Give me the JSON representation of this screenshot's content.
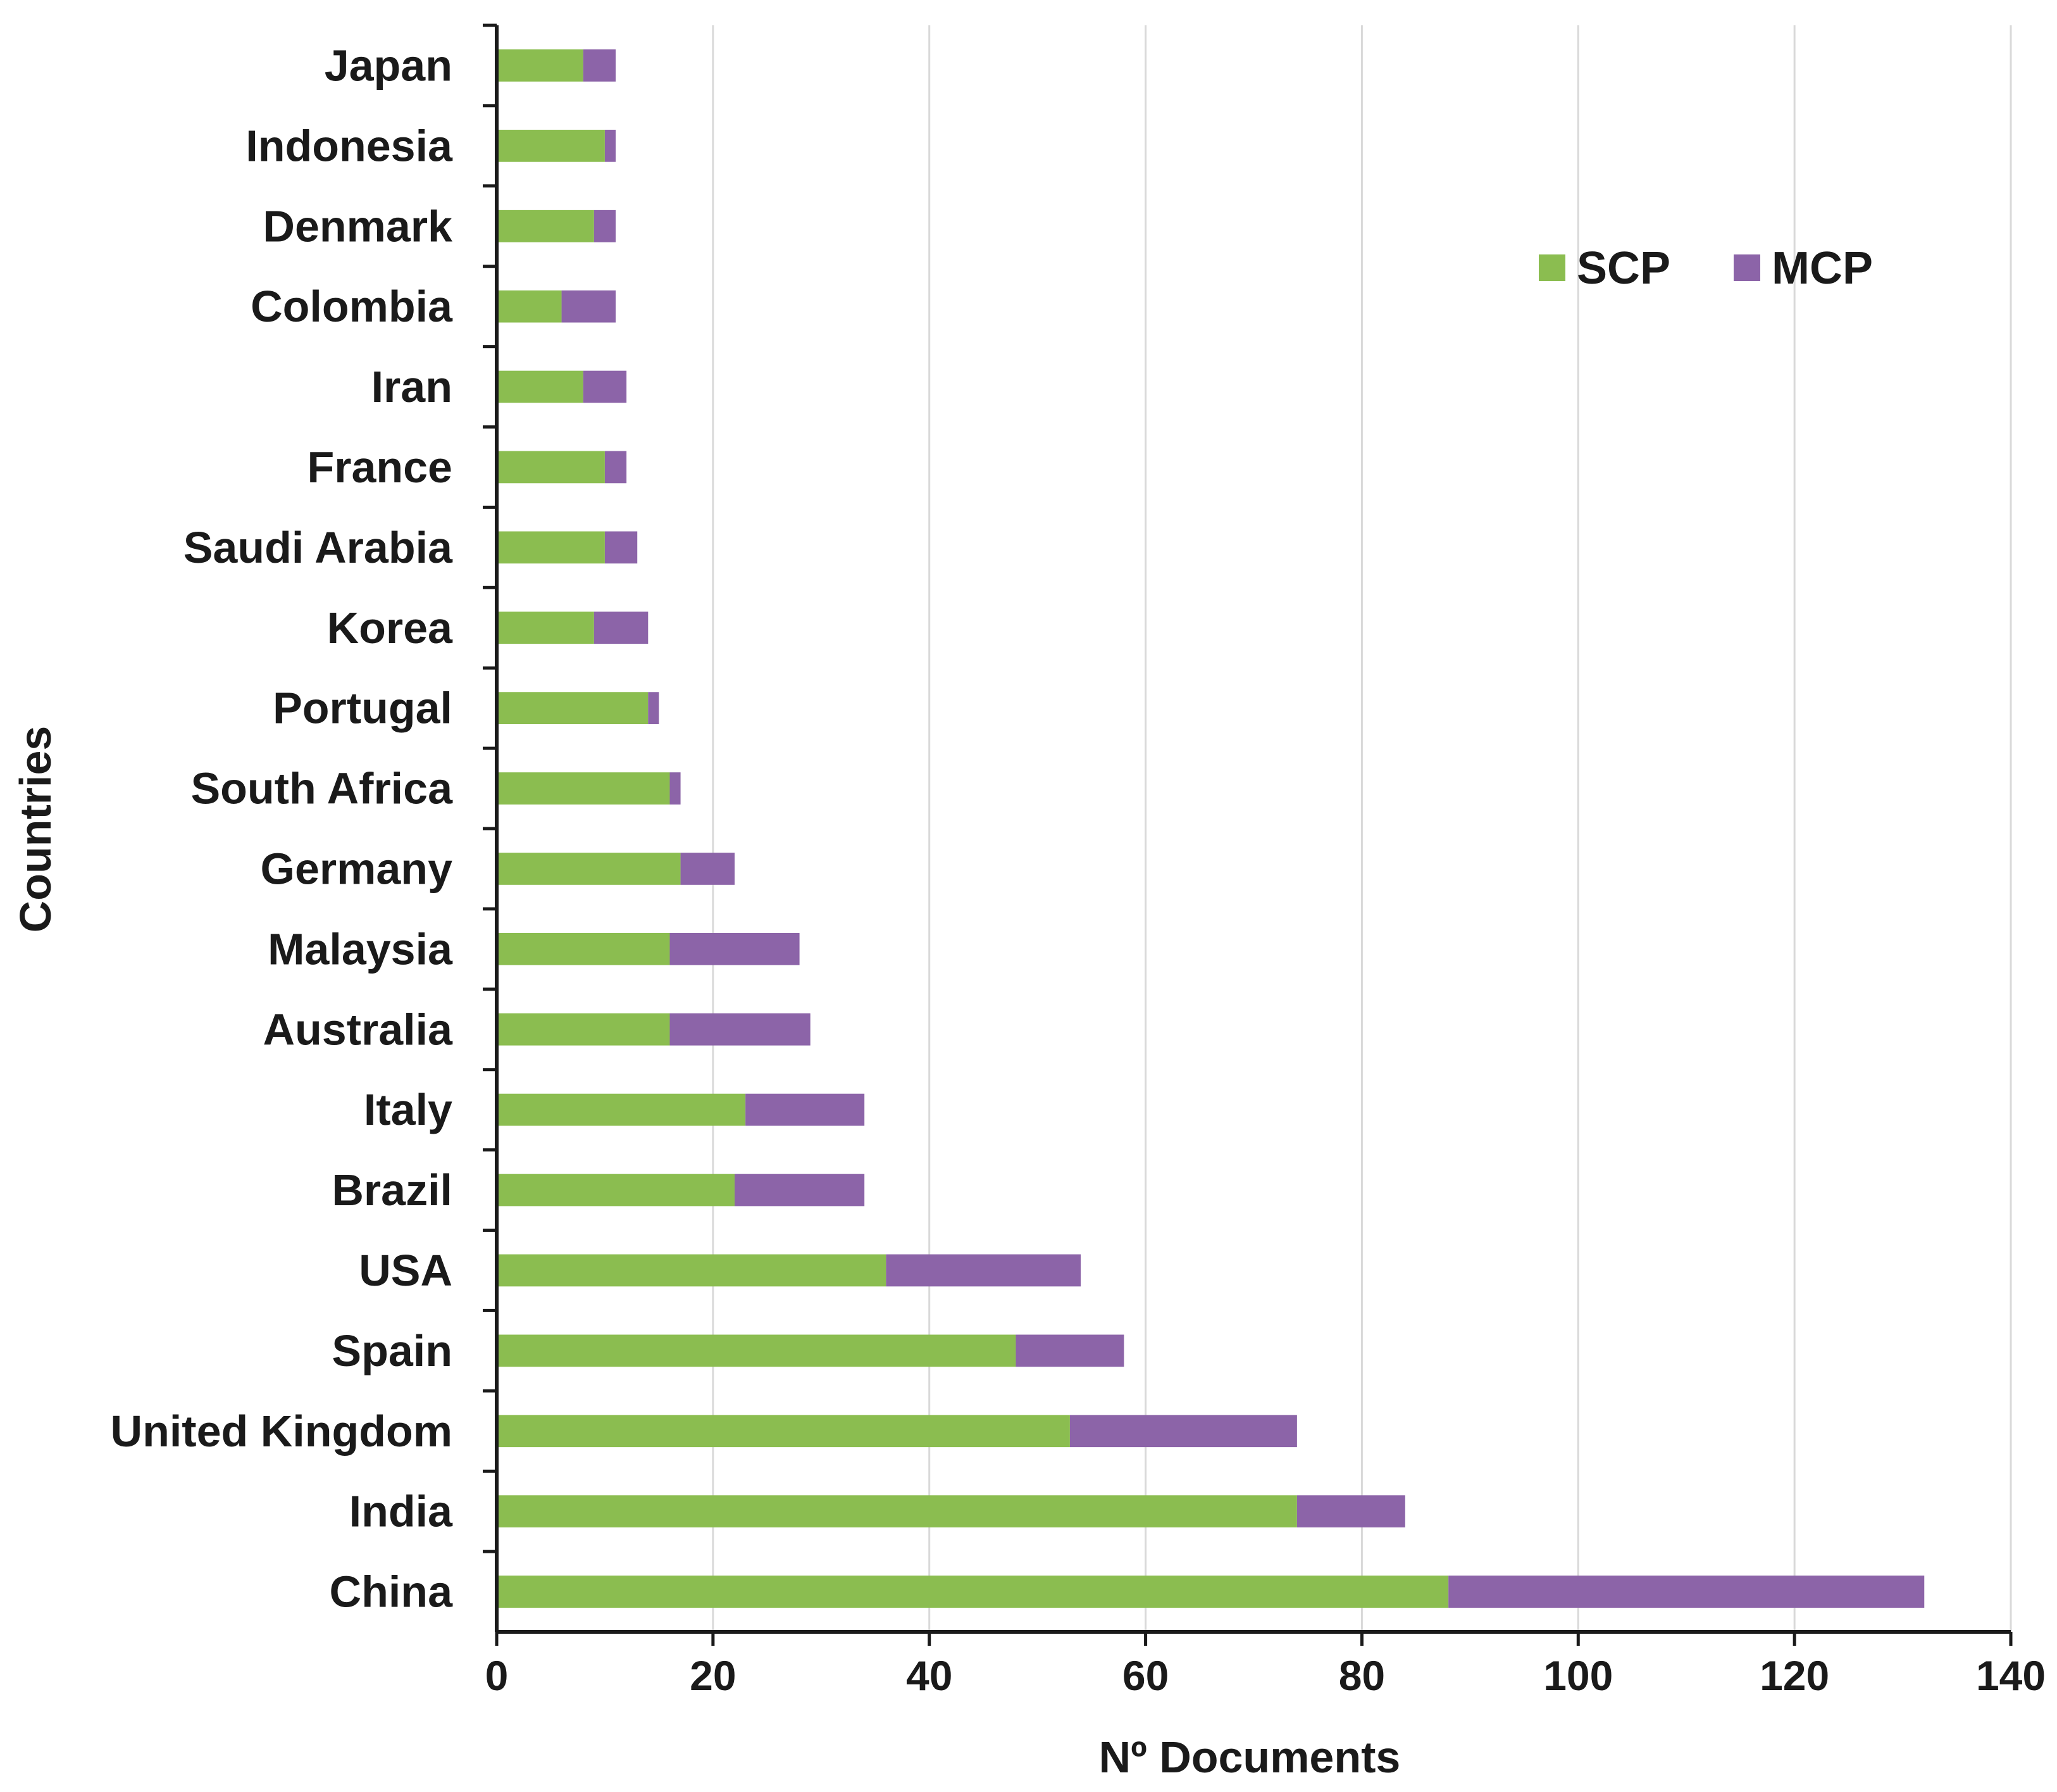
{
  "chart_data": {
    "type": "bar",
    "orientation": "horizontal",
    "stacked": true,
    "categories": [
      "China",
      "India",
      "United Kingdom",
      "Spain",
      "USA",
      "Brazil",
      "Italy",
      "Australia",
      "Malaysia",
      "Germany",
      "South Africa",
      "Portugal",
      "Korea",
      "Saudi Arabia",
      "France",
      "Iran",
      "Colombia",
      "Denmark",
      "Indonesia",
      "Japan"
    ],
    "series": [
      {
        "name": "SCP",
        "color": "#8BBD50",
        "values": [
          88,
          74,
          53,
          48,
          36,
          22,
          23,
          16,
          16,
          17,
          16,
          14,
          9,
          10,
          10,
          8,
          6,
          9,
          10,
          8
        ]
      },
      {
        "name": "MCP",
        "color": "#8C64A8",
        "values": [
          44,
          10,
          21,
          10,
          18,
          12,
          11,
          13,
          12,
          5,
          1,
          1,
          5,
          3,
          2,
          4,
          5,
          2,
          1,
          3
        ]
      }
    ],
    "xlabel": "Nº Documents",
    "ylabel": "Countries",
    "xlim": [
      0,
      140
    ],
    "xticks": [
      0,
      20,
      40,
      60,
      80,
      100,
      120,
      140
    ],
    "grid": "vertical",
    "legend": "top-right"
  }
}
